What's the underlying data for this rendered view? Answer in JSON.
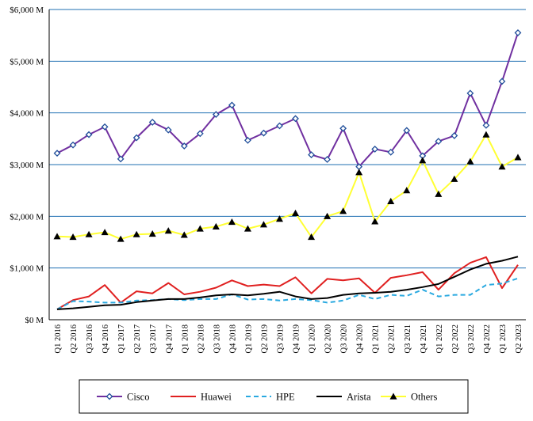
{
  "chart_data": {
    "type": "line",
    "title": "",
    "xlabel": "",
    "ylabel": "",
    "ylim": [
      0,
      6000
    ],
    "y_unit_suffix": " M",
    "y_ticks": [
      0,
      1000,
      2000,
      3000,
      4000,
      5000,
      6000
    ],
    "y_tick_labels": [
      "$0 M",
      "$1,000 M",
      "$2,000 M",
      "$3,000 M",
      "$4,000 M",
      "$5,000 M",
      "$6,000 M"
    ],
    "grid": "horizontal",
    "legend_position": "bottom",
    "categories": [
      "Q1 2016",
      "Q2 2016",
      "Q3 2016",
      "Q4 2016",
      "Q1 2017",
      "Q2 2017",
      "Q3 2017",
      "Q4 2017",
      "Q1 2018",
      "Q2 2018",
      "Q3 2018",
      "Q4 2018",
      "Q1 2019",
      "Q2 2019",
      "Q3 2019",
      "Q4 2019",
      "Q1 2020",
      "Q2 2020",
      "Q3 2020",
      "Q4 2020",
      "Q1 2021",
      "Q2 2021",
      "Q3 2021",
      "Q4 2021",
      "Q1 2022",
      "Q2 2022",
      "Q3 2022",
      "Q4 2022",
      "Q1 2023",
      "Q2 2023"
    ],
    "series": [
      {
        "name": "Cisco",
        "color": "#7030A0",
        "marker": "diamond",
        "dash": "solid",
        "values": [
          3220,
          3380,
          3580,
          3730,
          3110,
          3520,
          3820,
          3670,
          3360,
          3600,
          3970,
          4150,
          3470,
          3610,
          3750,
          3890,
          3190,
          3100,
          3700,
          2960,
          3300,
          3240,
          3660,
          3170,
          3450,
          3560,
          4380,
          3760,
          4610,
          5550
        ]
      },
      {
        "name": "Huawei",
        "color": "#E02020",
        "marker": "none",
        "dash": "solid",
        "values": [
          200,
          380,
          450,
          670,
          330,
          550,
          510,
          710,
          490,
          540,
          620,
          760,
          650,
          680,
          650,
          820,
          510,
          790,
          760,
          800,
          520,
          810,
          860,
          920,
          580,
          900,
          1100,
          1210,
          610,
          1060
        ]
      },
      {
        "name": "HPE",
        "color": "#29A9E0",
        "marker": "none",
        "dash": "dashed",
        "values": [
          200,
          360,
          350,
          330,
          330,
          370,
          380,
          400,
          380,
          400,
          400,
          490,
          390,
          400,
          370,
          400,
          380,
          330,
          370,
          480,
          400,
          480,
          460,
          580,
          450,
          480,
          480,
          670,
          700,
          800
        ]
      },
      {
        "name": "Arista",
        "color": "#000000",
        "marker": "none",
        "dash": "solid",
        "values": [
          200,
          220,
          250,
          280,
          290,
          340,
          370,
          400,
          400,
          430,
          470,
          490,
          470,
          500,
          540,
          450,
          400,
          420,
          480,
          510,
          520,
          540,
          580,
          630,
          690,
          830,
          970,
          1080,
          1140,
          1220
        ]
      },
      {
        "name": "Others",
        "color": "#FFFF33",
        "marker": "triangle",
        "dash": "solid",
        "values": [
          1610,
          1600,
          1650,
          1690,
          1560,
          1650,
          1660,
          1720,
          1640,
          1760,
          1800,
          1890,
          1760,
          1840,
          1950,
          2060,
          1600,
          2000,
          2100,
          2850,
          1900,
          2290,
          2500,
          3080,
          2430,
          2720,
          3060,
          3580,
          2960,
          3140
        ]
      }
    ]
  }
}
